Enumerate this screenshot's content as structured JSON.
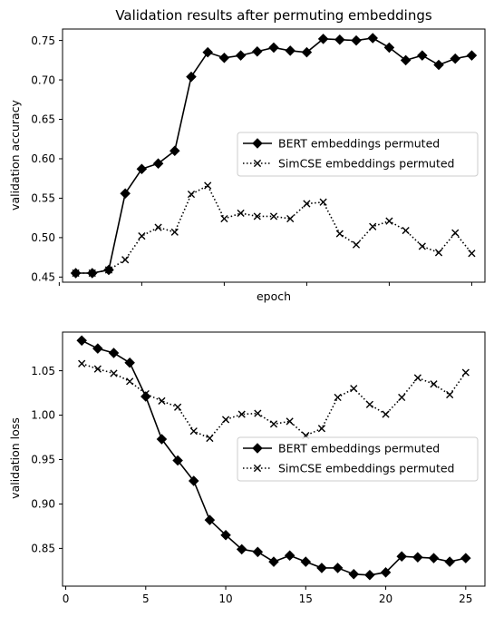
{
  "chart_data": [
    {
      "type": "line",
      "title": "Validation results after permuting embeddings",
      "xlabel": "epoch",
      "ylabel": "validation accuracy",
      "xlim": [
        0.2,
        25.8
      ],
      "ylim": [
        0.4435,
        0.7645
      ],
      "xticks": [
        0,
        5,
        10,
        15,
        20,
        25
      ],
      "xtick_labels_shown": false,
      "yticks": [
        0.45,
        0.5,
        0.55,
        0.6,
        0.65,
        0.7,
        0.75
      ],
      "ytick_labels": [
        "0.45",
        "0.50",
        "0.55",
        "0.60",
        "0.65",
        "0.70",
        "0.75"
      ],
      "grid": false,
      "legend": "center-right",
      "x": [
        1,
        2,
        3,
        4,
        5,
        6,
        7,
        8,
        9,
        10,
        11,
        12,
        13,
        14,
        15,
        16,
        17,
        18,
        19,
        20,
        21,
        22,
        23,
        24,
        25
      ],
      "series": [
        {
          "name": "BERT embeddings permuted",
          "style": "solid",
          "marker": "diamond",
          "color": "#000000",
          "values": [
            0.455,
            0.455,
            0.459,
            0.556,
            0.587,
            0.594,
            0.61,
            0.704,
            0.735,
            0.728,
            0.731,
            0.736,
            0.741,
            0.737,
            0.735,
            0.752,
            0.751,
            0.75,
            0.753,
            0.741,
            0.725,
            0.731,
            0.719,
            0.727,
            0.731
          ]
        },
        {
          "name": "SimCSE embeddings permuted",
          "style": "dotted",
          "marker": "x",
          "color": "#000000",
          "values": [
            0.455,
            0.455,
            0.459,
            0.472,
            0.502,
            0.513,
            0.507,
            0.555,
            0.566,
            0.524,
            0.531,
            0.527,
            0.527,
            0.524,
            0.543,
            0.545,
            0.505,
            0.491,
            0.514,
            0.521,
            0.509,
            0.489,
            0.481,
            0.506,
            0.48
          ]
        }
      ]
    },
    {
      "type": "line",
      "title": "",
      "xlabel": "",
      "ylabel": "validation loss",
      "xlim": [
        -0.2,
        26.2
      ],
      "ylim": [
        0.8075,
        1.0935
      ],
      "xticks": [
        0,
        5,
        10,
        15,
        20,
        25
      ],
      "xtick_labels": [
        "0",
        "5",
        "10",
        "15",
        "20",
        "25"
      ],
      "yticks": [
        0.85,
        0.9,
        0.95,
        1.0,
        1.05
      ],
      "ytick_labels": [
        "0.85",
        "0.90",
        "0.95",
        "1.00",
        "1.05"
      ],
      "grid": false,
      "legend": "center-right",
      "x": [
        1,
        2,
        3,
        4,
        5,
        6,
        7,
        8,
        9,
        10,
        11,
        12,
        13,
        14,
        15,
        16,
        17,
        18,
        19,
        20,
        21,
        22,
        23,
        24,
        25
      ],
      "series": [
        {
          "name": "BERT embeddings permuted",
          "style": "solid",
          "marker": "diamond",
          "color": "#000000",
          "values": [
            1.084,
            1.075,
            1.07,
            1.059,
            1.021,
            0.973,
            0.949,
            0.926,
            0.882,
            0.865,
            0.849,
            0.846,
            0.835,
            0.842,
            0.835,
            0.828,
            0.828,
            0.821,
            0.82,
            0.823,
            0.841,
            0.84,
            0.839,
            0.835,
            0.839
          ]
        },
        {
          "name": "SimCSE embeddings permuted",
          "style": "dotted",
          "marker": "x",
          "color": "#000000",
          "values": [
            1.058,
            1.052,
            1.047,
            1.038,
            1.024,
            1.016,
            1.009,
            0.982,
            0.974,
            0.995,
            1.001,
            1.002,
            0.99,
            0.993,
            0.977,
            0.985,
            1.02,
            1.03,
            1.012,
            1.001,
            1.02,
            1.042,
            1.035,
            1.023,
            1.048
          ]
        }
      ]
    }
  ]
}
